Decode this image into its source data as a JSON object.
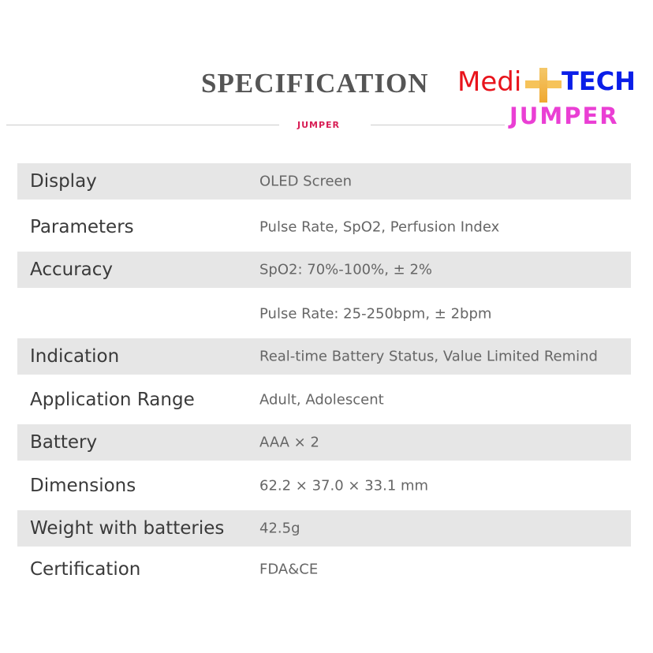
{
  "header": {
    "title": "SPECIFICATION",
    "logo_medi": "Medi",
    "logo_tech": "TECH",
    "logo_jumper": "JUMPER",
    "small_brand": "JUMPER"
  },
  "rows": [
    {
      "label": "Display",
      "value": "OLED Screen"
    },
    {
      "label": "Parameters",
      "value": "Pulse Rate, SpO2, Perfusion Index"
    },
    {
      "label": "Accuracy",
      "value": "SpO2: 70%-100%, ± 2%"
    },
    {
      "label": "",
      "value": "Pulse Rate: 25-250bpm, ± 2bpm"
    },
    {
      "label": "Indication",
      "value": "Real-time Battery Status, Value Limited Remind"
    },
    {
      "label": "Application Range",
      "value": "Adult, Adolescent"
    },
    {
      "label": "Battery",
      "value": "AAA × 2"
    },
    {
      "label": "Dimensions",
      "value": "62.2 × 37.0 × 33.1 mm"
    },
    {
      "label": "Weight with batteries",
      "value": "42.5g"
    },
    {
      "label": "Certification",
      "value": "FDA&CE"
    }
  ]
}
